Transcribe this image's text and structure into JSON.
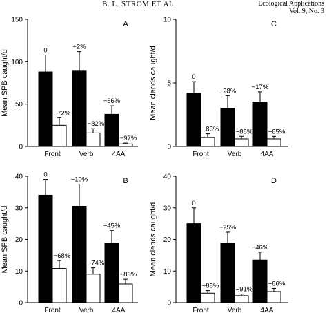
{
  "header": {
    "center": "B. L. STROM ET AL.",
    "right_line1": "Ecological Applications",
    "right_line2": "Vol. 9, No. 3"
  },
  "chart_data": [
    {
      "type": "bar",
      "panel": "A",
      "ylabel": "Mean SPB caught/d",
      "ylim": [
        0,
        150
      ],
      "yticks": [
        0,
        50,
        100,
        150
      ],
      "categories": [
        "Front",
        "Verb",
        "4AA"
      ],
      "series": [
        {
          "fill": "black",
          "values": [
            88,
            89,
            38
          ],
          "errors": [
            20,
            23,
            10
          ],
          "labels": [
            "0",
            "+2%",
            "−56%"
          ]
        },
        {
          "fill": "white",
          "values": [
            25,
            16,
            3
          ],
          "errors": [
            9,
            5,
            1
          ],
          "labels": [
            "−72%",
            "−82%",
            "−97%"
          ]
        }
      ]
    },
    {
      "type": "bar",
      "panel": "C",
      "ylabel": "Mean clerids caught/d",
      "ylim": [
        0,
        10
      ],
      "yticks": [
        0,
        5,
        10
      ],
      "categories": [
        "Front",
        "Verb",
        "4AA"
      ],
      "series": [
        {
          "fill": "black",
          "values": [
            4.2,
            3.0,
            3.5
          ],
          "errors": [
            0.9,
            1.0,
            0.8
          ],
          "labels": [
            "0",
            "−28%",
            "−17%"
          ]
        },
        {
          "fill": "white",
          "values": [
            0.7,
            0.6,
            0.6
          ],
          "errors": [
            0.3,
            0.2,
            0.2
          ],
          "labels": [
            "−83%",
            "−86%",
            "−85%"
          ]
        }
      ]
    },
    {
      "type": "bar",
      "panel": "B",
      "ylabel": "Mean SPB caught/d",
      "ylim": [
        0,
        40
      ],
      "yticks": [
        0,
        10,
        20,
        30,
        40
      ],
      "categories": [
        "Front",
        "Verb",
        "4AA"
      ],
      "series": [
        {
          "fill": "black",
          "values": [
            34,
            30.5,
            18.8
          ],
          "errors": [
            5,
            7,
            4
          ],
          "labels": [
            "0",
            "−10%",
            "−45%"
          ]
        },
        {
          "fill": "white",
          "values": [
            10.8,
            9,
            5.9
          ],
          "errors": [
            2.5,
            2,
            1.5
          ],
          "labels": [
            "−68%",
            "−74%",
            "−83%"
          ]
        }
      ]
    },
    {
      "type": "bar",
      "panel": "D",
      "ylabel": "Mean clerids caught/d",
      "ylim": [
        0,
        40
      ],
      "yticks": [
        0,
        10,
        20,
        30,
        40
      ],
      "categories": [
        "Front",
        "Verb",
        "4AA"
      ],
      "series": [
        {
          "fill": "black",
          "values": [
            25,
            18.8,
            13.5
          ],
          "errors": [
            5,
            3.5,
            2.5
          ],
          "labels": [
            "0",
            "−25%",
            "−46%"
          ]
        },
        {
          "fill": "white",
          "values": [
            3,
            2.2,
            3.5
          ],
          "errors": [
            0.8,
            0.5,
            1
          ],
          "labels": [
            "−88%",
            "−91%",
            "−86%"
          ]
        }
      ]
    }
  ]
}
